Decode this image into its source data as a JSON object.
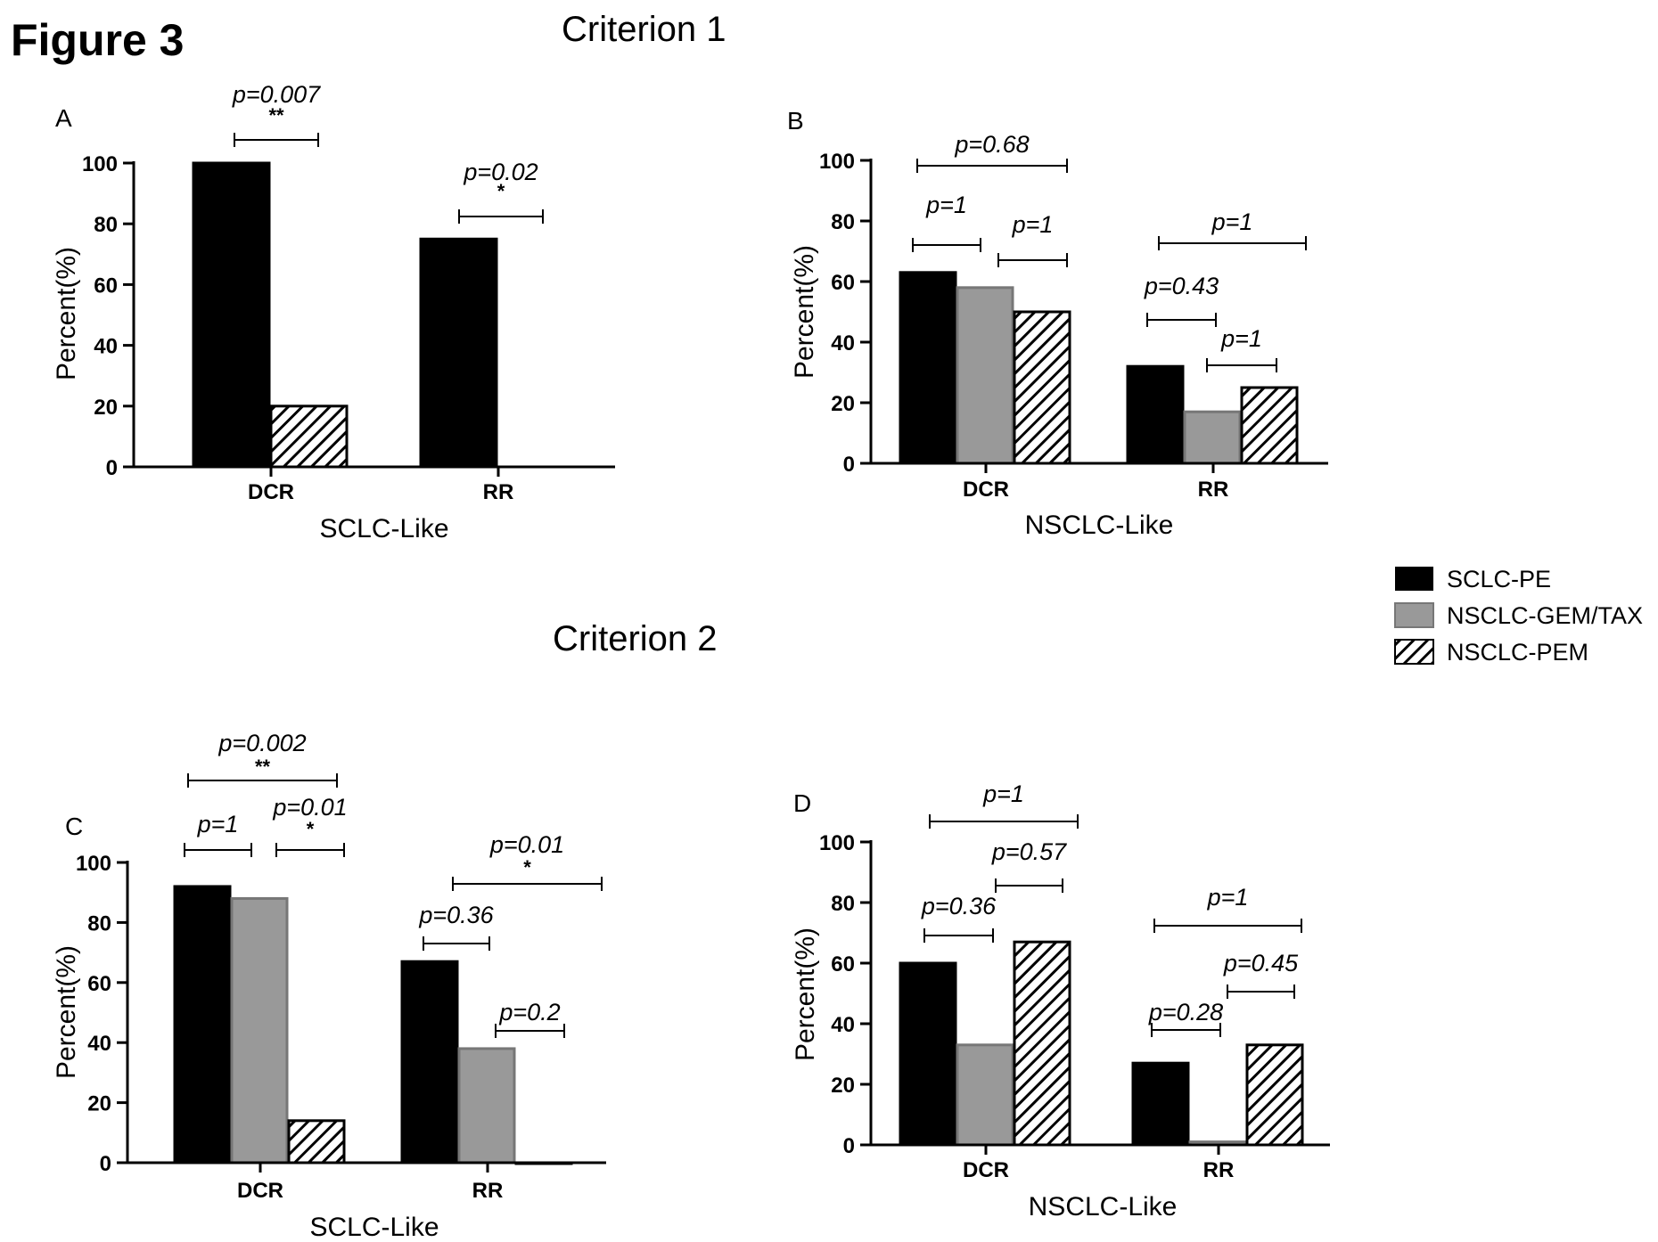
{
  "figure": {
    "title": "Figure 3",
    "criterion1_title": "Criterion 1",
    "criterion2_title": "Criterion 2"
  },
  "legend": {
    "items": [
      {
        "label": "SCLC-PE",
        "style": "solid",
        "color": "#000000"
      },
      {
        "label": "NSCLC-GEM/TAX",
        "style": "solid",
        "color": "#999999"
      },
      {
        "label": "NSCLC-PEM",
        "style": "hatch",
        "color": "#000000"
      }
    ]
  },
  "chart_data": [
    {
      "panel": "A",
      "type": "bar",
      "title": "",
      "xlabel": "SCLC-Like",
      "ylabel": "Percent(%)",
      "ylim": [
        0,
        100
      ],
      "yticks": [
        0,
        20,
        40,
        60,
        80,
        100
      ],
      "categories": [
        "DCR",
        "RR"
      ],
      "series": [
        {
          "name": "SCLC-PE",
          "values": [
            100,
            75
          ]
        },
        {
          "name": "NSCLC-PEM",
          "values": [
            20,
            null
          ]
        }
      ],
      "annotations": [
        {
          "p": "p=0.007",
          "stars": "**",
          "category": "DCR",
          "from": "SCLC-PE",
          "to": "NSCLC-PEM"
        },
        {
          "p": "p=0.02",
          "stars": "*",
          "category": "RR",
          "from": "SCLC-PE",
          "to": "NSCLC-PEM"
        }
      ]
    },
    {
      "panel": "B",
      "type": "bar",
      "title": "",
      "xlabel": "NSCLC-Like",
      "ylabel": "Percent(%)",
      "ylim": [
        0,
        100
      ],
      "yticks": [
        0,
        20,
        40,
        60,
        80,
        100
      ],
      "categories": [
        "DCR",
        "RR"
      ],
      "series": [
        {
          "name": "SCLC-PE",
          "values": [
            63,
            32
          ]
        },
        {
          "name": "NSCLC-GEM/TAX",
          "values": [
            58,
            17
          ]
        },
        {
          "name": "NSCLC-PEM",
          "values": [
            50,
            25
          ]
        }
      ],
      "annotations": [
        {
          "p": "p=0.68",
          "stars": "",
          "category": "DCR",
          "from": "SCLC-PE",
          "to": "NSCLC-PEM"
        },
        {
          "p": "p=1",
          "stars": "",
          "category": "DCR",
          "from": "SCLC-PE",
          "to": "NSCLC-GEM/TAX"
        },
        {
          "p": "p=1",
          "stars": "",
          "category": "DCR",
          "from": "NSCLC-GEM/TAX",
          "to": "NSCLC-PEM"
        },
        {
          "p": "p=1",
          "stars": "",
          "category": "RR",
          "from": "SCLC-PE",
          "to": "NSCLC-PEM"
        },
        {
          "p": "p=0.43",
          "stars": "",
          "category": "RR",
          "from": "SCLC-PE",
          "to": "NSCLC-GEM/TAX"
        },
        {
          "p": "p=1",
          "stars": "",
          "category": "RR",
          "from": "NSCLC-GEM/TAX",
          "to": "NSCLC-PEM"
        }
      ]
    },
    {
      "panel": "C",
      "type": "bar",
      "title": "",
      "xlabel": "SCLC-Like",
      "ylabel": "Percent(%)",
      "ylim": [
        0,
        100
      ],
      "yticks": [
        0,
        20,
        40,
        60,
        80,
        100
      ],
      "categories": [
        "DCR",
        "RR"
      ],
      "series": [
        {
          "name": "SCLC-PE",
          "values": [
            92,
            67
          ]
        },
        {
          "name": "NSCLC-GEM/TAX",
          "values": [
            88,
            38
          ]
        },
        {
          "name": "NSCLC-PEM",
          "values": [
            14,
            0
          ]
        }
      ],
      "annotations": [
        {
          "p": "p=0.002",
          "stars": "**",
          "category": "DCR",
          "from": "SCLC-PE",
          "to": "NSCLC-PEM"
        },
        {
          "p": "p=1",
          "stars": "",
          "category": "DCR",
          "from": "SCLC-PE",
          "to": "NSCLC-GEM/TAX"
        },
        {
          "p": "p=0.01",
          "stars": "*",
          "category": "DCR",
          "from": "NSCLC-GEM/TAX",
          "to": "NSCLC-PEM"
        },
        {
          "p": "p=0.01",
          "stars": "*",
          "category": "RR",
          "from": "SCLC-PE",
          "to": "NSCLC-PEM"
        },
        {
          "p": "p=0.36",
          "stars": "",
          "category": "RR",
          "from": "SCLC-PE",
          "to": "NSCLC-GEM/TAX"
        },
        {
          "p": "p=0.2",
          "stars": "",
          "category": "RR",
          "from": "NSCLC-GEM/TAX",
          "to": "NSCLC-PEM"
        }
      ]
    },
    {
      "panel": "D",
      "type": "bar",
      "title": "",
      "xlabel": "NSCLC-Like",
      "ylabel": "Percent(%)",
      "ylim": [
        0,
        100
      ],
      "yticks": [
        0,
        20,
        40,
        60,
        80,
        100
      ],
      "categories": [
        "DCR",
        "RR"
      ],
      "series": [
        {
          "name": "SCLC-PE",
          "values": [
            60,
            27
          ]
        },
        {
          "name": "NSCLC-GEM/TAX",
          "values": [
            33,
            1
          ]
        },
        {
          "name": "NSCLC-PEM",
          "values": [
            67,
            33
          ]
        }
      ],
      "annotations": [
        {
          "p": "p=1",
          "stars": "",
          "category": "DCR",
          "from": "SCLC-PE",
          "to": "NSCLC-PEM"
        },
        {
          "p": "p=0.57",
          "stars": "",
          "category": "DCR",
          "from": "NSCLC-GEM/TAX",
          "to": "NSCLC-PEM"
        },
        {
          "p": "p=0.36",
          "stars": "",
          "category": "DCR",
          "from": "SCLC-PE",
          "to": "NSCLC-GEM/TAX"
        },
        {
          "p": "p=1",
          "stars": "",
          "category": "RR",
          "from": "SCLC-PE",
          "to": "NSCLC-PEM"
        },
        {
          "p": "p=0.45",
          "stars": "",
          "category": "RR",
          "from": "NSCLC-GEM/TAX",
          "to": "NSCLC-PEM"
        },
        {
          "p": "p=0.28",
          "stars": "",
          "category": "RR",
          "from": "SCLC-PE",
          "to": "NSCLC-GEM/TAX"
        }
      ]
    }
  ]
}
